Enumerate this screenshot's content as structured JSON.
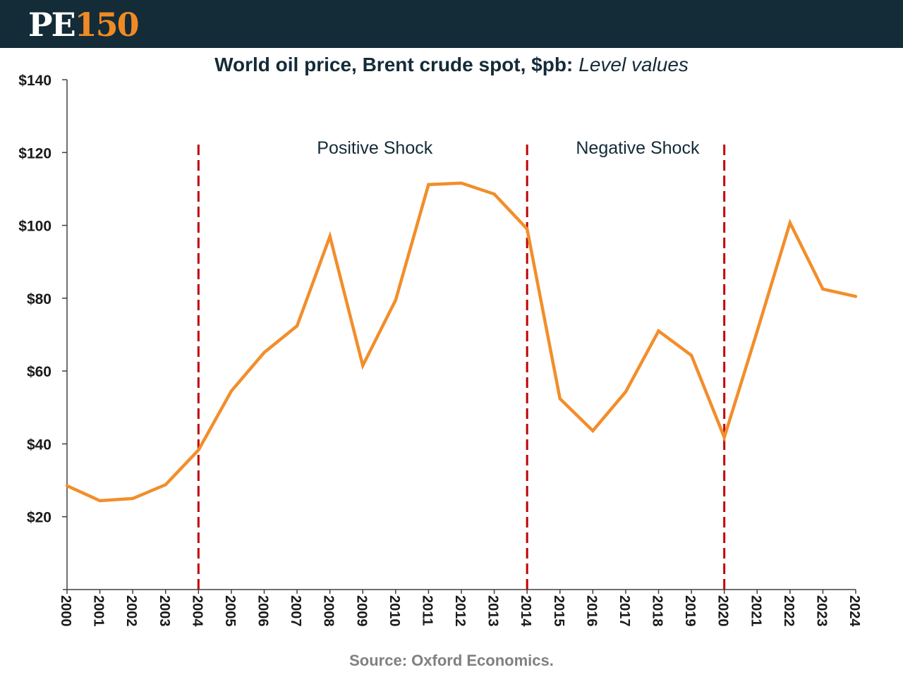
{
  "header": {
    "logo_letters": "PE",
    "logo_number": "150"
  },
  "chart_data": {
    "type": "line",
    "title": "World oil price, Brent crude spot, $pb:",
    "subtitle": "Level values",
    "xlabel": "",
    "ylabel": "",
    "categories": [
      "2000",
      "2001",
      "2002",
      "2003",
      "2004",
      "2005",
      "2006",
      "2007",
      "2008",
      "2009",
      "2010",
      "2011",
      "2012",
      "2013",
      "2014",
      "2015",
      "2016",
      "2017",
      "2018",
      "2019",
      "2020",
      "2021",
      "2022",
      "2023",
      "2024"
    ],
    "series": [
      {
        "values": [
          28.5,
          24.4,
          25.0,
          28.8,
          38.3,
          54.5,
          65.1,
          72.4,
          97.0,
          61.5,
          79.5,
          111.2,
          111.6,
          108.6,
          99.0,
          52.4,
          43.6,
          54.3,
          71.0,
          64.3,
          41.8,
          70.9,
          100.7,
          82.5,
          80.5
        ],
        "color": "#f28e2b"
      }
    ],
    "ylim": [
      0,
      140
    ],
    "yticks": [
      20,
      40,
      60,
      80,
      100,
      120,
      140
    ],
    "ytick_labels": [
      "$20",
      "$40",
      "$60",
      "$80",
      "$100",
      "$120",
      "$140"
    ],
    "grid": false,
    "vlines": [
      {
        "x": "2004",
        "color": "#c00000"
      },
      {
        "x": "2014",
        "color": "#c00000"
      },
      {
        "x": "2020",
        "color": "#c00000"
      }
    ],
    "annotations": [
      {
        "text": "Positive Shock",
        "x_between": [
          "2004",
          "2014"
        ]
      },
      {
        "text": "Negative Shock",
        "x_between": [
          "2014",
          "2020"
        ]
      }
    ]
  },
  "source": "Source: Oxford Economics."
}
